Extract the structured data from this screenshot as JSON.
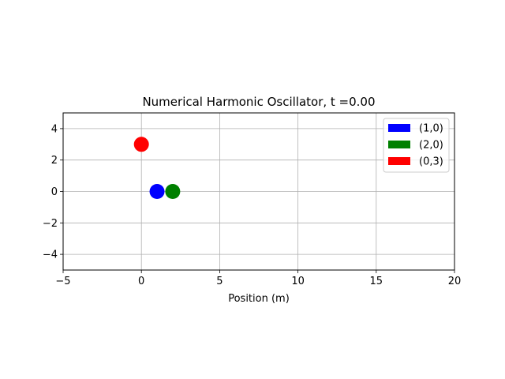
{
  "chart_data": {
    "type": "scatter",
    "title": "Numerical Harmonic Oscillator, t =0.00",
    "xlabel": "Position (m)",
    "ylabel": "",
    "xlim": [
      -5,
      20
    ],
    "ylim": [
      -5,
      5
    ],
    "xticks": [
      -5,
      0,
      5,
      10,
      15,
      20
    ],
    "yticks": [
      -4,
      -2,
      0,
      2,
      4
    ],
    "xtick_labels": [
      "−5",
      "0",
      "5",
      "10",
      "15",
      "20"
    ],
    "ytick_labels": [
      "−4",
      "−2",
      "0",
      "2",
      "4"
    ],
    "grid": true,
    "legend_position": "top-right",
    "series": [
      {
        "name": "(1,0)",
        "color": "#0000ff",
        "points": [
          {
            "x": 1,
            "y": 0
          }
        ]
      },
      {
        "name": "(2,0)",
        "color": "#008000",
        "points": [
          {
            "x": 2,
            "y": 0
          }
        ]
      },
      {
        "name": "(0,3)",
        "color": "#ff0000",
        "points": [
          {
            "x": 0,
            "y": 3
          }
        ]
      }
    ]
  }
}
